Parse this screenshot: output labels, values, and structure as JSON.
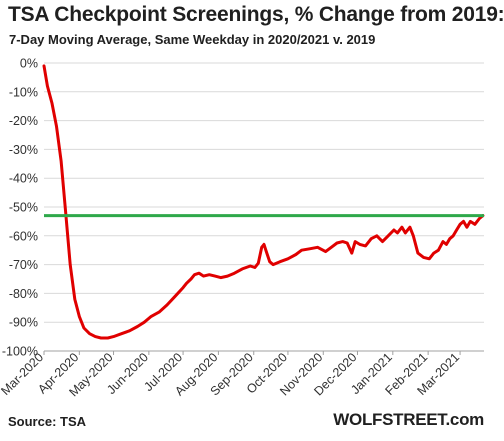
{
  "title": "TSA Checkpoint Screenings, % Change from 2019:",
  "subtitle": "7-Day Moving Average, Same Weekday in 2020/2021 v. 2019",
  "source": "Source: TSA",
  "brand": "WOLFSTREET.com",
  "colors": {
    "line": "#e00000",
    "reference": "#2ea84a",
    "grid": "#d9d9d9",
    "axis": "#a0a0a0"
  },
  "chart_data": {
    "type": "line",
    "title": "TSA Checkpoint Screenings, % Change from 2019:",
    "subtitle": "7-Day Moving Average, Same Weekday in 2020/2021 v. 2019",
    "xlabel": "",
    "ylabel": "",
    "ylim": [
      -100,
      0
    ],
    "xlim": [
      "2020-03-01",
      "2021-03-22"
    ],
    "grid": "horizontal",
    "y_ticks": [
      "0%",
      "-10%",
      "-20%",
      "-30%",
      "-40%",
      "-50%",
      "-60%",
      "-70%",
      "-80%",
      "-90%",
      "-100%"
    ],
    "x_ticks": [
      {
        "date": "2020-03-01",
        "label": "Mar-2020"
      },
      {
        "date": "2020-04-01",
        "label": "Apr-2020"
      },
      {
        "date": "2020-05-01",
        "label": "May-2020"
      },
      {
        "date": "2020-06-01",
        "label": "Jun-2020"
      },
      {
        "date": "2020-07-01",
        "label": "Jul-2020"
      },
      {
        "date": "2020-08-01",
        "label": "Aug-2020"
      },
      {
        "date": "2020-09-01",
        "label": "Sep-2020"
      },
      {
        "date": "2020-10-01",
        "label": "Oct-2020"
      },
      {
        "date": "2020-11-01",
        "label": "Nov-2020"
      },
      {
        "date": "2020-12-01",
        "label": "Dec-2020"
      },
      {
        "date": "2021-01-01",
        "label": "Jan-2021"
      },
      {
        "date": "2021-02-01",
        "label": "Feb-2021"
      },
      {
        "date": "2021-03-01",
        "label": "Mar-2021"
      }
    ],
    "reference_line": {
      "y": -53
    },
    "series": [
      {
        "points": [
          [
            "2020-03-01",
            -1
          ],
          [
            "2020-03-04",
            -8
          ],
          [
            "2020-03-08",
            -14
          ],
          [
            "2020-03-12",
            -22
          ],
          [
            "2020-03-16",
            -34
          ],
          [
            "2020-03-20",
            -52
          ],
          [
            "2020-03-24",
            -70
          ],
          [
            "2020-03-28",
            -82
          ],
          [
            "2020-04-01",
            -88
          ],
          [
            "2020-04-05",
            -92
          ],
          [
            "2020-04-10",
            -94
          ],
          [
            "2020-04-15",
            -95
          ],
          [
            "2020-04-20",
            -95.5
          ],
          [
            "2020-04-26",
            -95.5
          ],
          [
            "2020-05-01",
            -95
          ],
          [
            "2020-05-08",
            -94
          ],
          [
            "2020-05-15",
            -93
          ],
          [
            "2020-05-22",
            -91.5
          ],
          [
            "2020-05-28",
            -90
          ],
          [
            "2020-06-03",
            -88
          ],
          [
            "2020-06-10",
            -86.5
          ],
          [
            "2020-06-17",
            -84
          ],
          [
            "2020-06-24",
            -81
          ],
          [
            "2020-07-01",
            -78
          ],
          [
            "2020-07-04",
            -76.5
          ],
          [
            "2020-07-08",
            -75
          ],
          [
            "2020-07-11",
            -73.5
          ],
          [
            "2020-07-15",
            -73
          ],
          [
            "2020-07-19",
            -74
          ],
          [
            "2020-07-24",
            -73.5
          ],
          [
            "2020-07-29",
            -74
          ],
          [
            "2020-08-03",
            -74.5
          ],
          [
            "2020-08-09",
            -74
          ],
          [
            "2020-08-15",
            -73
          ],
          [
            "2020-08-22",
            -71.5
          ],
          [
            "2020-08-29",
            -70.5
          ],
          [
            "2020-09-02",
            -71
          ],
          [
            "2020-09-05",
            -69.5
          ],
          [
            "2020-09-08",
            -64
          ],
          [
            "2020-09-10",
            -63
          ],
          [
            "2020-09-12",
            -65.5
          ],
          [
            "2020-09-15",
            -69
          ],
          [
            "2020-09-18",
            -70
          ],
          [
            "2020-09-24",
            -69
          ],
          [
            "2020-10-01",
            -68
          ],
          [
            "2020-10-08",
            -66.5
          ],
          [
            "2020-10-13",
            -65
          ],
          [
            "2020-10-20",
            -64.5
          ],
          [
            "2020-10-27",
            -64
          ],
          [
            "2020-11-03",
            -65.5
          ],
          [
            "2020-11-08",
            -64
          ],
          [
            "2020-11-13",
            -62.5
          ],
          [
            "2020-11-18",
            -62
          ],
          [
            "2020-11-22",
            -62.5
          ],
          [
            "2020-11-26",
            -66
          ],
          [
            "2020-11-29",
            -62
          ],
          [
            "2020-12-03",
            -63
          ],
          [
            "2020-12-08",
            -63.5
          ],
          [
            "2020-12-13",
            -61
          ],
          [
            "2020-12-18",
            -60
          ],
          [
            "2020-12-23",
            -62
          ],
          [
            "2020-12-28",
            -60
          ],
          [
            "2021-01-02",
            -58
          ],
          [
            "2021-01-05",
            -59
          ],
          [
            "2021-01-09",
            -57
          ],
          [
            "2021-01-12",
            -59
          ],
          [
            "2021-01-16",
            -57
          ],
          [
            "2021-01-19",
            -60
          ],
          [
            "2021-01-23",
            -66
          ],
          [
            "2021-01-28",
            -67.5
          ],
          [
            "2021-02-02",
            -68
          ],
          [
            "2021-02-06",
            -66
          ],
          [
            "2021-02-10",
            -65
          ],
          [
            "2021-02-14",
            -62
          ],
          [
            "2021-02-17",
            -63
          ],
          [
            "2021-02-20",
            -61
          ],
          [
            "2021-02-23",
            -60
          ],
          [
            "2021-02-26",
            -58
          ],
          [
            "2021-03-01",
            -56
          ],
          [
            "2021-03-04",
            -55
          ],
          [
            "2021-03-07",
            -57
          ],
          [
            "2021-03-10",
            -55
          ],
          [
            "2021-03-14",
            -56
          ],
          [
            "2021-03-18",
            -54
          ],
          [
            "2021-03-21",
            -53
          ]
        ]
      }
    ]
  }
}
